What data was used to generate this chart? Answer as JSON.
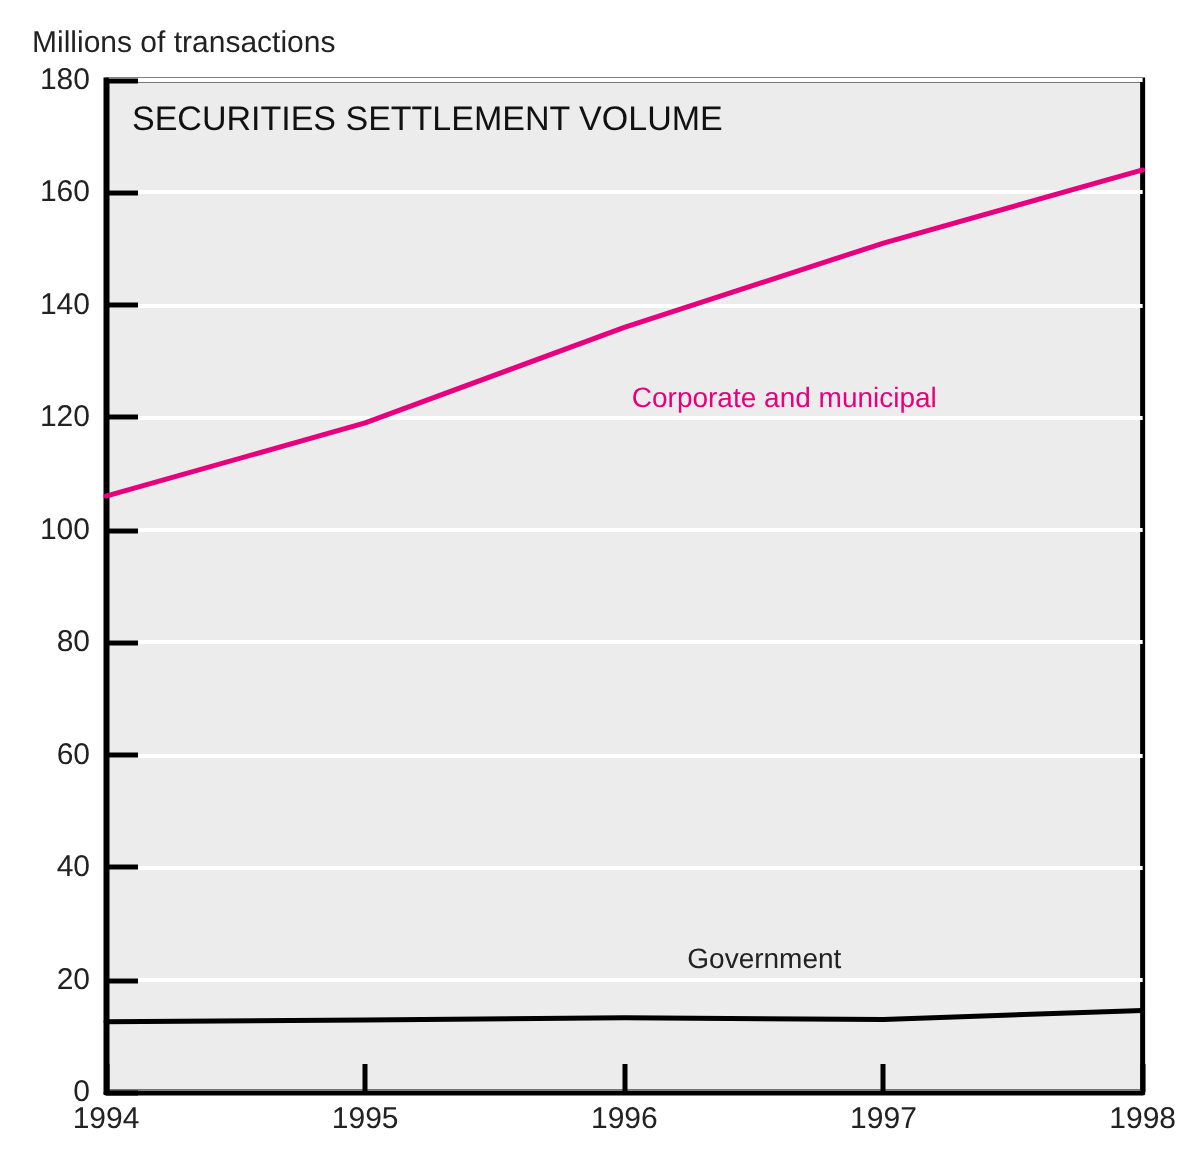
{
  "chart_data": {
    "type": "line",
    "title": "SECURITIES SETTLEMENT VOLUME",
    "ylabel": "Millions of transactions",
    "x": [
      1994,
      1995,
      1996,
      1997,
      1998
    ],
    "series": [
      {
        "name": "Corporate and municipal",
        "color": "#e6007e",
        "values": [
          106,
          119,
          136,
          151,
          164
        ]
      },
      {
        "name": "Government",
        "color": "#000000",
        "values": [
          12.5,
          12.8,
          13.2,
          12.9,
          14.5
        ]
      }
    ],
    "xlim": [
      1994,
      1998
    ],
    "xticks": [
      1994,
      1995,
      1996,
      1997,
      1998
    ],
    "ylim": [
      0,
      180
    ],
    "yticks": [
      0,
      20,
      40,
      60,
      80,
      100,
      120,
      140,
      160,
      180
    ],
    "grid": "y",
    "legend": false,
    "marker": "none",
    "line_style": "solid"
  }
}
